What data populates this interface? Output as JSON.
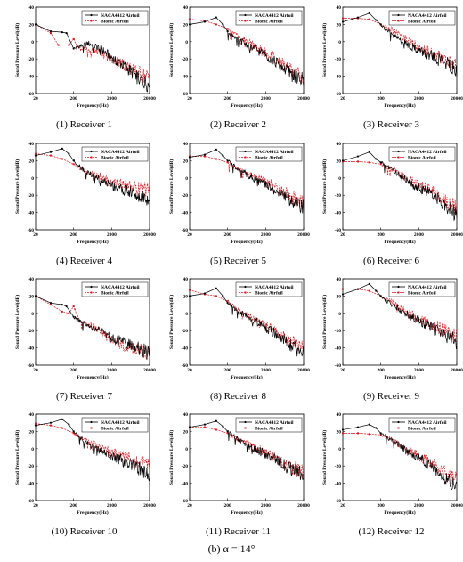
{
  "figure_caption": "(b)  α = 14°",
  "chart_data": {
    "type": "line",
    "x_scale": "log",
    "xlim": [
      20,
      20000
    ],
    "ylim": [
      -60,
      40
    ],
    "xticks": [
      "20",
      "200",
      "2000",
      "20000"
    ],
    "yticks": [
      "40",
      "20",
      "0",
      "-20",
      "-40",
      "-60"
    ],
    "xlabel": "Frequency(Hz)",
    "ylabel": "Sound Pressure Level(dB)",
    "legend_position": "top-right",
    "series_names": [
      "NACA4412 Airfoil",
      "Bionic Airfoil"
    ],
    "series_colors": [
      "#000000",
      "#e8141c"
    ],
    "panels": [
      {
        "caption": "(1) Receiver 1",
        "naca": [
          [
            20,
            20
          ],
          [
            50,
            12
          ],
          [
            100,
            11
          ],
          [
            130,
            10
          ],
          [
            200,
            -8
          ],
          [
            300,
            -5
          ],
          [
            500,
            -2
          ],
          [
            1000,
            -8
          ],
          [
            2000,
            -18
          ],
          [
            5000,
            -30
          ],
          [
            10000,
            -42
          ],
          [
            20000,
            -50
          ]
        ],
        "bionic": [
          [
            20,
            20
          ],
          [
            50,
            10
          ],
          [
            80,
            -4
          ],
          [
            150,
            -4
          ],
          [
            200,
            3
          ],
          [
            300,
            -8
          ],
          [
            600,
            -10
          ],
          [
            1000,
            -12
          ],
          [
            2000,
            -20
          ],
          [
            5000,
            -28
          ],
          [
            10000,
            -36
          ],
          [
            20000,
            -42
          ]
        ]
      },
      {
        "caption": "(2) Receiver 2",
        "naca": [
          [
            20,
            20
          ],
          [
            50,
            23
          ],
          [
            100,
            28
          ],
          [
            150,
            20
          ],
          [
            200,
            12
          ],
          [
            400,
            2
          ],
          [
            800,
            -6
          ],
          [
            2000,
            -15
          ],
          [
            5000,
            -28
          ],
          [
            10000,
            -38
          ],
          [
            20000,
            -45
          ]
        ],
        "bionic": [
          [
            20,
            26
          ],
          [
            50,
            24
          ],
          [
            100,
            20
          ],
          [
            200,
            15
          ],
          [
            400,
            6
          ],
          [
            800,
            -2
          ],
          [
            2000,
            -12
          ],
          [
            5000,
            -24
          ],
          [
            10000,
            -34
          ],
          [
            20000,
            -40
          ]
        ]
      },
      {
        "caption": "(3)  Receiver 3",
        "naca": [
          [
            20,
            23
          ],
          [
            50,
            28
          ],
          [
            100,
            33
          ],
          [
            150,
            25
          ],
          [
            200,
            20
          ],
          [
            400,
            8
          ],
          [
            800,
            0
          ],
          [
            2000,
            -10
          ],
          [
            5000,
            -18
          ],
          [
            10000,
            -24
          ],
          [
            20000,
            -32
          ]
        ],
        "bionic": [
          [
            20,
            27
          ],
          [
            50,
            27
          ],
          [
            100,
            26
          ],
          [
            200,
            20
          ],
          [
            400,
            14
          ],
          [
            800,
            5
          ],
          [
            2000,
            -6
          ],
          [
            5000,
            -14
          ],
          [
            10000,
            -22
          ],
          [
            20000,
            -28
          ]
        ]
      },
      {
        "caption": "(4) Receiver 4",
        "naca": [
          [
            20,
            26
          ],
          [
            50,
            30
          ],
          [
            100,
            34
          ],
          [
            150,
            28
          ],
          [
            200,
            20
          ],
          [
            400,
            8
          ],
          [
            800,
            0
          ],
          [
            2000,
            -8
          ],
          [
            5000,
            -15
          ],
          [
            10000,
            -20
          ],
          [
            20000,
            -25
          ]
        ],
        "bionic": [
          [
            20,
            28
          ],
          [
            50,
            26
          ],
          [
            100,
            22
          ],
          [
            200,
            16
          ],
          [
            400,
            8
          ],
          [
            800,
            4
          ],
          [
            2000,
            -4
          ],
          [
            5000,
            -8
          ],
          [
            10000,
            -12
          ],
          [
            20000,
            -14
          ]
        ]
      },
      {
        "caption": "(5) Receiver 5",
        "naca": [
          [
            20,
            24
          ],
          [
            50,
            27
          ],
          [
            100,
            33
          ],
          [
            150,
            26
          ],
          [
            200,
            20
          ],
          [
            400,
            10
          ],
          [
            800,
            2
          ],
          [
            2000,
            -8
          ],
          [
            5000,
            -18
          ],
          [
            10000,
            -26
          ],
          [
            20000,
            -32
          ]
        ],
        "bionic": [
          [
            20,
            25
          ],
          [
            50,
            25
          ],
          [
            100,
            22
          ],
          [
            200,
            18
          ],
          [
            400,
            10
          ],
          [
            800,
            4
          ],
          [
            2000,
            -4
          ],
          [
            5000,
            -14
          ],
          [
            10000,
            -22
          ],
          [
            20000,
            -28
          ]
        ]
      },
      {
        "caption": "(6)  Receiver 6",
        "naca": [
          [
            20,
            20
          ],
          [
            50,
            25
          ],
          [
            100,
            30
          ],
          [
            150,
            22
          ],
          [
            200,
            18
          ],
          [
            400,
            10
          ],
          [
            800,
            0
          ],
          [
            2000,
            -10
          ],
          [
            5000,
            -20
          ],
          [
            10000,
            -32
          ],
          [
            20000,
            -42
          ]
        ],
        "bionic": [
          [
            20,
            19
          ],
          [
            50,
            19
          ],
          [
            100,
            18
          ],
          [
            200,
            16
          ],
          [
            400,
            10
          ],
          [
            800,
            2
          ],
          [
            2000,
            -8
          ],
          [
            5000,
            -16
          ],
          [
            10000,
            -26
          ],
          [
            20000,
            -34
          ]
        ]
      },
      {
        "caption": "(7) Receiver 7",
        "naca": [
          [
            20,
            20
          ],
          [
            50,
            12
          ],
          [
            100,
            10
          ],
          [
            130,
            8
          ],
          [
            200,
            -4
          ],
          [
            300,
            -10
          ],
          [
            500,
            -15
          ],
          [
            1000,
            -20
          ],
          [
            2000,
            -28
          ],
          [
            5000,
            -35
          ],
          [
            10000,
            -40
          ],
          [
            20000,
            -45
          ]
        ],
        "bionic": [
          [
            20,
            20
          ],
          [
            50,
            10
          ],
          [
            100,
            2
          ],
          [
            150,
            0
          ],
          [
            200,
            8
          ],
          [
            300,
            -10
          ],
          [
            600,
            -14
          ],
          [
            1000,
            -20
          ],
          [
            2000,
            -30
          ],
          [
            5000,
            -38
          ],
          [
            10000,
            -42
          ],
          [
            20000,
            -46
          ]
        ]
      },
      {
        "caption": "(8) Receiver 8",
        "naca": [
          [
            20,
            20
          ],
          [
            50,
            23
          ],
          [
            100,
            29
          ],
          [
            150,
            20
          ],
          [
            200,
            12
          ],
          [
            400,
            2
          ],
          [
            800,
            -6
          ],
          [
            2000,
            -16
          ],
          [
            5000,
            -28
          ],
          [
            10000,
            -38
          ],
          [
            20000,
            -46
          ]
        ],
        "bionic": [
          [
            20,
            27
          ],
          [
            50,
            22
          ],
          [
            100,
            20
          ],
          [
            200,
            14
          ],
          [
            400,
            4
          ],
          [
            800,
            -4
          ],
          [
            2000,
            -14
          ],
          [
            5000,
            -24
          ],
          [
            10000,
            -32
          ],
          [
            20000,
            -40
          ]
        ]
      },
      {
        "caption": "(9)  Receiver 9",
        "naca": [
          [
            20,
            22
          ],
          [
            50,
            28
          ],
          [
            100,
            34
          ],
          [
            150,
            26
          ],
          [
            200,
            20
          ],
          [
            400,
            10
          ],
          [
            800,
            2
          ],
          [
            2000,
            -8
          ],
          [
            5000,
            -18
          ],
          [
            10000,
            -25
          ],
          [
            20000,
            -32
          ]
        ],
        "bionic": [
          [
            20,
            28
          ],
          [
            50,
            28
          ],
          [
            100,
            26
          ],
          [
            200,
            20
          ],
          [
            400,
            14
          ],
          [
            800,
            4
          ],
          [
            2000,
            -6
          ],
          [
            5000,
            -14
          ],
          [
            10000,
            -20
          ],
          [
            20000,
            -26
          ]
        ]
      },
      {
        "caption": "(10) Receiver 10",
        "naca": [
          [
            20,
            27
          ],
          [
            50,
            30
          ],
          [
            100,
            34
          ],
          [
            150,
            28
          ],
          [
            200,
            20
          ],
          [
            400,
            8
          ],
          [
            800,
            0
          ],
          [
            2000,
            -8
          ],
          [
            5000,
            -16
          ],
          [
            10000,
            -22
          ],
          [
            20000,
            -28
          ]
        ],
        "bionic": [
          [
            20,
            29
          ],
          [
            50,
            27
          ],
          [
            100,
            24
          ],
          [
            200,
            18
          ],
          [
            400,
            10
          ],
          [
            800,
            4
          ],
          [
            2000,
            -4
          ],
          [
            5000,
            -10
          ],
          [
            10000,
            -14
          ],
          [
            20000,
            -18
          ]
        ]
      },
      {
        "caption": "(11) Receiver 11",
        "naca": [
          [
            20,
            25
          ],
          [
            50,
            28
          ],
          [
            100,
            32
          ],
          [
            150,
            26
          ],
          [
            200,
            20
          ],
          [
            400,
            10
          ],
          [
            800,
            2
          ],
          [
            2000,
            -6
          ],
          [
            5000,
            -16
          ],
          [
            10000,
            -24
          ],
          [
            20000,
            -30
          ]
        ],
        "bionic": [
          [
            20,
            25
          ],
          [
            50,
            25
          ],
          [
            100,
            22
          ],
          [
            200,
            18
          ],
          [
            400,
            10
          ],
          [
            800,
            4
          ],
          [
            2000,
            -4
          ],
          [
            5000,
            -14
          ],
          [
            10000,
            -22
          ],
          [
            20000,
            -26
          ]
        ]
      },
      {
        "caption": "(12)  Receiver 12",
        "naca": [
          [
            20,
            22
          ],
          [
            50,
            25
          ],
          [
            100,
            28
          ],
          [
            150,
            24
          ],
          [
            200,
            18
          ],
          [
            400,
            10
          ],
          [
            800,
            0
          ],
          [
            2000,
            -10
          ],
          [
            5000,
            -22
          ],
          [
            10000,
            -34
          ],
          [
            20000,
            -42
          ]
        ],
        "bionic": [
          [
            20,
            18
          ],
          [
            50,
            18
          ],
          [
            100,
            17
          ],
          [
            200,
            16
          ],
          [
            400,
            10
          ],
          [
            800,
            2
          ],
          [
            2000,
            -8
          ],
          [
            5000,
            -18
          ],
          [
            10000,
            -28
          ],
          [
            20000,
            -36
          ]
        ]
      }
    ]
  }
}
